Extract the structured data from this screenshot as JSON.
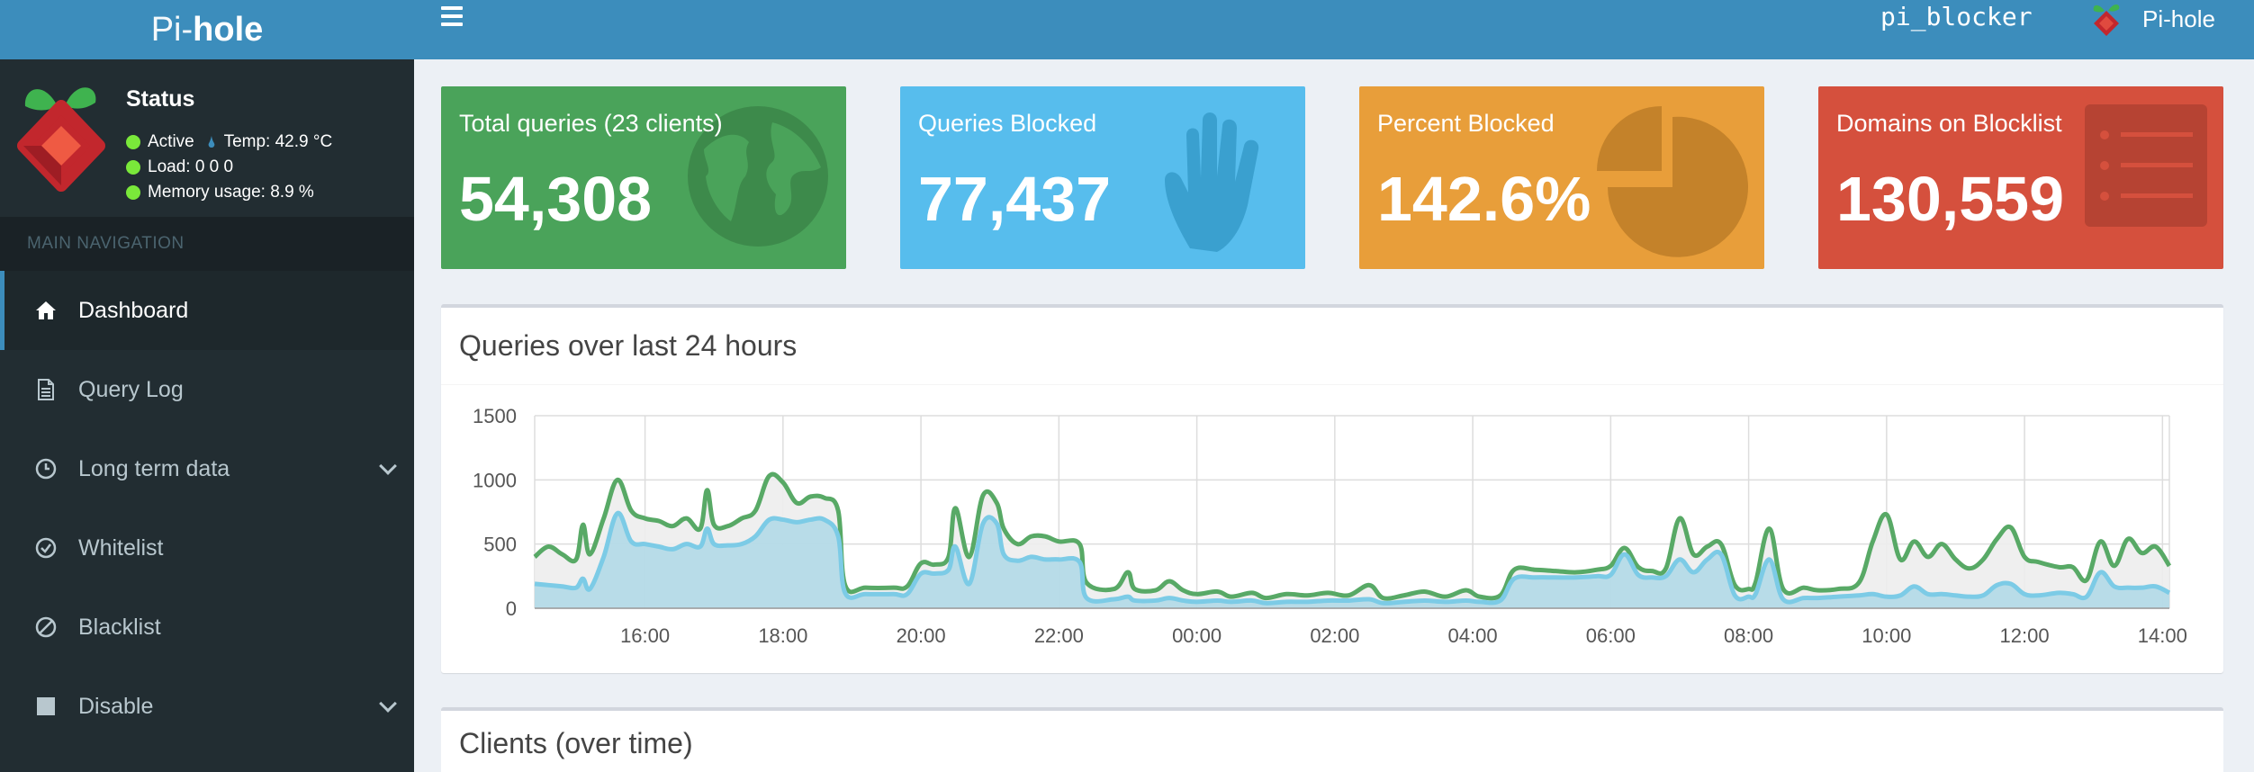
{
  "header": {
    "logo_pi": "Pi-",
    "logo_hole": "hole",
    "hostname": "pi_blocker",
    "user_label": "Pi-hole"
  },
  "sidebar": {
    "status_title": "Status",
    "status_active": "Active",
    "status_temp": "Temp: 42.9 °C",
    "status_load": "Load:  0  0  0",
    "status_memory": "Memory usage:  8.9 %",
    "nav_header": "MAIN NAVIGATION",
    "items": [
      {
        "label": "Dashboard",
        "icon": "home-icon"
      },
      {
        "label": "Query Log",
        "icon": "file-icon"
      },
      {
        "label": "Long term data",
        "icon": "clock-icon"
      },
      {
        "label": "Whitelist",
        "icon": "check-circle-icon"
      },
      {
        "label": "Blacklist",
        "icon": "ban-icon"
      },
      {
        "label": "Disable",
        "icon": "stop-icon"
      }
    ]
  },
  "stats": {
    "total": {
      "label": "Total queries (23 clients)",
      "value": "54,308",
      "icon": "globe-icon"
    },
    "blocked": {
      "label": "Queries Blocked",
      "value": "77,437",
      "icon": "hand-icon"
    },
    "percent": {
      "label": "Percent Blocked",
      "value": "142.6%",
      "icon": "pie-icon"
    },
    "domains": {
      "label": "Domains on Blocklist",
      "value": "130,559",
      "icon": "list-icon"
    }
  },
  "colors": {
    "header": "#3c8dbc",
    "green": "#4aa35a",
    "aqua": "#57bded",
    "orange": "#e89e3a",
    "red": "#d5503d"
  },
  "chart_title": "Queries over last 24 hours",
  "clients_title": "Clients (over time)",
  "chart_data": {
    "type": "area",
    "title": "Queries over last 24 hours",
    "xlabel": "",
    "ylabel": "",
    "ylim": [
      0,
      1500
    ],
    "yticks": [
      "0",
      "500",
      "1000",
      "1500"
    ],
    "x_range_hours": [
      14.4,
      38.1
    ],
    "xticks": [
      {
        "h": 16,
        "label": "16:00"
      },
      {
        "h": 18,
        "label": "18:00"
      },
      {
        "h": 20,
        "label": "20:00"
      },
      {
        "h": 22,
        "label": "22:00"
      },
      {
        "h": 24,
        "label": "00:00"
      },
      {
        "h": 26,
        "label": "02:00"
      },
      {
        "h": 28,
        "label": "04:00"
      },
      {
        "h": 30,
        "label": "06:00"
      },
      {
        "h": 32,
        "label": "08:00"
      },
      {
        "h": 34,
        "label": "10:00"
      },
      {
        "h": 36,
        "label": "12:00"
      },
      {
        "h": 38,
        "label": "14:00"
      }
    ],
    "grid": true,
    "series": [
      {
        "color": "#58a966",
        "fill": "#ededed",
        "points": [
          [
            14.4,
            400
          ],
          [
            14.6,
            480
          ],
          [
            14.8,
            420
          ],
          [
            15.0,
            380
          ],
          [
            15.1,
            650
          ],
          [
            15.2,
            420
          ],
          [
            15.4,
            700
          ],
          [
            15.6,
            1000
          ],
          [
            15.8,
            760
          ],
          [
            16.0,
            700
          ],
          [
            16.2,
            680
          ],
          [
            16.4,
            640
          ],
          [
            16.6,
            700
          ],
          [
            16.8,
            620
          ],
          [
            16.9,
            920
          ],
          [
            17.0,
            650
          ],
          [
            17.2,
            640
          ],
          [
            17.4,
            700
          ],
          [
            17.6,
            760
          ],
          [
            17.8,
            1030
          ],
          [
            18.0,
            980
          ],
          [
            18.2,
            820
          ],
          [
            18.4,
            870
          ],
          [
            18.6,
            860
          ],
          [
            18.8,
            760
          ],
          [
            18.9,
            180
          ],
          [
            19.2,
            160
          ],
          [
            19.6,
            160
          ],
          [
            19.8,
            170
          ],
          [
            20.0,
            350
          ],
          [
            20.2,
            340
          ],
          [
            20.4,
            400
          ],
          [
            20.5,
            780
          ],
          [
            20.7,
            400
          ],
          [
            20.9,
            880
          ],
          [
            21.1,
            820
          ],
          [
            21.2,
            620
          ],
          [
            21.4,
            500
          ],
          [
            21.6,
            560
          ],
          [
            21.8,
            560
          ],
          [
            22.0,
            520
          ],
          [
            22.3,
            500
          ],
          [
            22.4,
            200
          ],
          [
            22.8,
            150
          ],
          [
            23.0,
            280
          ],
          [
            23.1,
            150
          ],
          [
            23.4,
            140
          ],
          [
            23.6,
            210
          ],
          [
            23.8,
            140
          ],
          [
            24.0,
            110
          ],
          [
            24.3,
            130
          ],
          [
            24.5,
            90
          ],
          [
            24.8,
            120
          ],
          [
            25.0,
            80
          ],
          [
            25.3,
            110
          ],
          [
            25.6,
            100
          ],
          [
            25.9,
            120
          ],
          [
            26.2,
            100
          ],
          [
            26.5,
            180
          ],
          [
            26.7,
            80
          ],
          [
            27.0,
            100
          ],
          [
            27.3,
            130
          ],
          [
            27.6,
            90
          ],
          [
            27.9,
            140
          ],
          [
            28.1,
            90
          ],
          [
            28.4,
            100
          ],
          [
            28.6,
            300
          ],
          [
            28.9,
            300
          ],
          [
            29.2,
            290
          ],
          [
            29.5,
            280
          ],
          [
            29.8,
            300
          ],
          [
            30.0,
            330
          ],
          [
            30.2,
            470
          ],
          [
            30.4,
            320
          ],
          [
            30.6,
            290
          ],
          [
            30.8,
            310
          ],
          [
            31.0,
            700
          ],
          [
            31.2,
            420
          ],
          [
            31.4,
            480
          ],
          [
            31.6,
            500
          ],
          [
            31.8,
            180
          ],
          [
            32.0,
            150
          ],
          [
            32.1,
            200
          ],
          [
            32.3,
            620
          ],
          [
            32.5,
            150
          ],
          [
            32.8,
            160
          ],
          [
            33.0,
            140
          ],
          [
            33.3,
            150
          ],
          [
            33.6,
            200
          ],
          [
            33.8,
            520
          ],
          [
            34.0,
            730
          ],
          [
            34.2,
            380
          ],
          [
            34.4,
            520
          ],
          [
            34.6,
            400
          ],
          [
            34.8,
            500
          ],
          [
            35.0,
            380
          ],
          [
            35.2,
            310
          ],
          [
            35.4,
            380
          ],
          [
            35.6,
            540
          ],
          [
            35.8,
            630
          ],
          [
            36.0,
            400
          ],
          [
            36.2,
            360
          ],
          [
            36.5,
            320
          ],
          [
            36.7,
            320
          ],
          [
            36.9,
            220
          ],
          [
            37.1,
            520
          ],
          [
            37.3,
            330
          ],
          [
            37.5,
            540
          ],
          [
            37.7,
            430
          ],
          [
            37.9,
            480
          ],
          [
            38.1,
            330
          ]
        ]
      },
      {
        "color": "#7ccbe6",
        "fill": "#aed8e6",
        "points": [
          [
            14.4,
            190
          ],
          [
            14.6,
            180
          ],
          [
            14.8,
            170
          ],
          [
            15.0,
            160
          ],
          [
            15.1,
            230
          ],
          [
            15.2,
            150
          ],
          [
            15.4,
            400
          ],
          [
            15.6,
            740
          ],
          [
            15.8,
            520
          ],
          [
            16.0,
            500
          ],
          [
            16.2,
            480
          ],
          [
            16.4,
            460
          ],
          [
            16.6,
            500
          ],
          [
            16.8,
            480
          ],
          [
            16.9,
            620
          ],
          [
            17.0,
            500
          ],
          [
            17.2,
            490
          ],
          [
            17.4,
            500
          ],
          [
            17.6,
            560
          ],
          [
            17.8,
            690
          ],
          [
            18.0,
            690
          ],
          [
            18.2,
            670
          ],
          [
            18.4,
            690
          ],
          [
            18.6,
            690
          ],
          [
            18.8,
            560
          ],
          [
            18.9,
            120
          ],
          [
            19.2,
            110
          ],
          [
            19.6,
            110
          ],
          [
            19.8,
            110
          ],
          [
            20.0,
            270
          ],
          [
            20.2,
            270
          ],
          [
            20.4,
            300
          ],
          [
            20.5,
            480
          ],
          [
            20.7,
            190
          ],
          [
            20.9,
            660
          ],
          [
            21.1,
            660
          ],
          [
            21.2,
            420
          ],
          [
            21.4,
            370
          ],
          [
            21.6,
            400
          ],
          [
            21.8,
            380
          ],
          [
            22.0,
            380
          ],
          [
            22.3,
            360
          ],
          [
            22.4,
            80
          ],
          [
            22.8,
            70
          ],
          [
            23.0,
            90
          ],
          [
            23.1,
            60
          ],
          [
            23.4,
            60
          ],
          [
            23.6,
            80
          ],
          [
            23.8,
            60
          ],
          [
            24.0,
            50
          ],
          [
            24.3,
            60
          ],
          [
            24.5,
            50
          ],
          [
            24.8,
            60
          ],
          [
            25.0,
            40
          ],
          [
            25.3,
            50
          ],
          [
            25.6,
            50
          ],
          [
            25.9,
            60
          ],
          [
            26.2,
            60
          ],
          [
            26.5,
            70
          ],
          [
            26.7,
            40
          ],
          [
            27.0,
            50
          ],
          [
            27.3,
            60
          ],
          [
            27.6,
            50
          ],
          [
            27.9,
            60
          ],
          [
            28.1,
            50
          ],
          [
            28.4,
            60
          ],
          [
            28.6,
            230
          ],
          [
            28.9,
            240
          ],
          [
            29.2,
            240
          ],
          [
            29.5,
            240
          ],
          [
            29.8,
            250
          ],
          [
            30.0,
            260
          ],
          [
            30.2,
            420
          ],
          [
            30.4,
            260
          ],
          [
            30.6,
            240
          ],
          [
            30.8,
            250
          ],
          [
            31.0,
            380
          ],
          [
            31.2,
            280
          ],
          [
            31.4,
            380
          ],
          [
            31.6,
            420
          ],
          [
            31.8,
            100
          ],
          [
            32.0,
            90
          ],
          [
            32.1,
            110
          ],
          [
            32.3,
            380
          ],
          [
            32.5,
            70
          ],
          [
            32.8,
            80
          ],
          [
            33.0,
            80
          ],
          [
            33.3,
            90
          ],
          [
            33.6,
            100
          ],
          [
            33.8,
            110
          ],
          [
            34.0,
            90
          ],
          [
            34.2,
            100
          ],
          [
            34.4,
            170
          ],
          [
            34.6,
            110
          ],
          [
            34.8,
            110
          ],
          [
            35.0,
            100
          ],
          [
            35.2,
            90
          ],
          [
            35.4,
            100
          ],
          [
            35.6,
            180
          ],
          [
            35.8,
            190
          ],
          [
            36.0,
            110
          ],
          [
            36.2,
            100
          ],
          [
            36.5,
            120
          ],
          [
            36.7,
            110
          ],
          [
            36.9,
            90
          ],
          [
            37.1,
            280
          ],
          [
            37.3,
            170
          ],
          [
            37.5,
            160
          ],
          [
            37.7,
            160
          ],
          [
            37.9,
            170
          ],
          [
            38.1,
            120
          ]
        ]
      }
    ]
  }
}
